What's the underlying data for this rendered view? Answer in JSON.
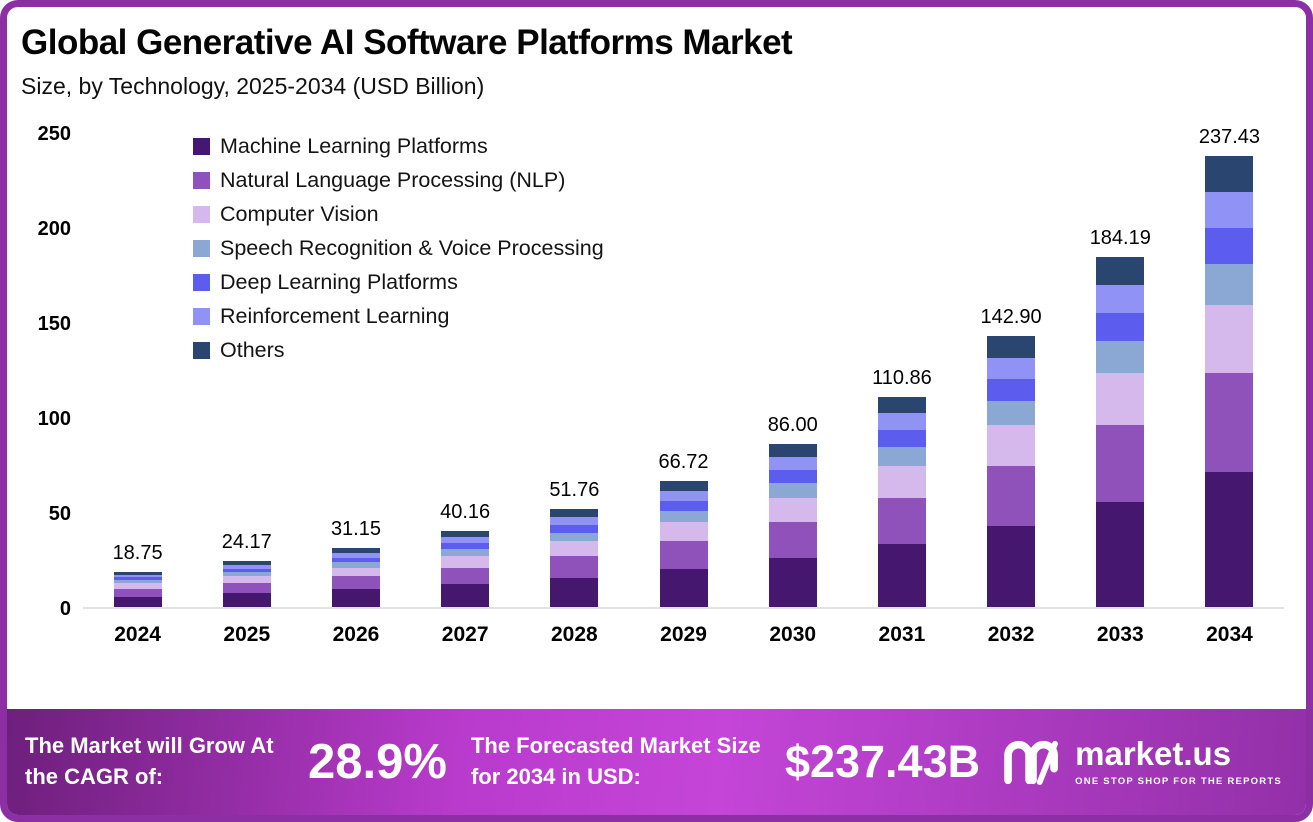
{
  "header": {
    "title": "Global Generative AI Software Platforms Market",
    "subtitle": "Size, by Technology, 2025-2034 (USD Billion)"
  },
  "chart_data": {
    "type": "bar",
    "stacked": true,
    "title": "Global Generative AI Software Platforms Market Size, by Technology, 2025-2034 (USD Billion)",
    "xlabel": "",
    "ylabel": "",
    "ylim": [
      0,
      250
    ],
    "yticks": [
      0,
      50,
      100,
      150,
      200,
      250
    ],
    "grid": false,
    "legend_position": "upper-left-inside",
    "categories": [
      "2024",
      "2025",
      "2026",
      "2027",
      "2028",
      "2029",
      "2030",
      "2031",
      "2032",
      "2033",
      "2034"
    ],
    "totals": [
      "18.75",
      "24.17",
      "31.15",
      "40.16",
      "51.76",
      "66.72",
      "86.00",
      "110.86",
      "142.90",
      "184.19",
      "237.43"
    ],
    "series": [
      {
        "name": "Machine Learning Platforms",
        "color": "#45176f",
        "values": [
          5.63,
          7.25,
          9.35,
          12.05,
          15.53,
          20.02,
          25.8,
          33.26,
          42.87,
          55.26,
          71.23
        ]
      },
      {
        "name": "Natural Language Processing (NLP)",
        "color": "#8e52ba",
        "values": [
          4.13,
          5.32,
          6.85,
          8.84,
          11.39,
          14.68,
          18.92,
          24.39,
          31.44,
          40.52,
          52.23
        ]
      },
      {
        "name": "Computer Vision",
        "color": "#d6b9ec",
        "values": [
          2.81,
          3.63,
          4.67,
          6.02,
          7.76,
          10.01,
          12.9,
          16.63,
          21.44,
          27.63,
          35.61
        ]
      },
      {
        "name": "Speech Recognition & Voice Processing",
        "color": "#8ba7d4",
        "values": [
          1.69,
          2.18,
          2.8,
          3.61,
          4.66,
          6.0,
          7.74,
          9.98,
          12.86,
          16.58,
          21.37
        ]
      },
      {
        "name": "Deep Learning Platforms",
        "color": "#5c5cee",
        "values": [
          1.5,
          1.93,
          2.49,
          3.21,
          4.14,
          5.34,
          6.88,
          8.87,
          11.43,
          14.74,
          18.99
        ]
      },
      {
        "name": "Reinforcement Learning",
        "color": "#9093f5",
        "values": [
          1.5,
          1.93,
          2.49,
          3.21,
          4.14,
          5.34,
          6.88,
          8.87,
          11.43,
          14.74,
          18.99
        ]
      },
      {
        "name": "Others",
        "color": "#2a4570",
        "values": [
          1.5,
          1.93,
          2.49,
          3.21,
          4.14,
          5.34,
          6.88,
          8.87,
          11.43,
          14.74,
          18.99
        ]
      }
    ]
  },
  "banner": {
    "cagr_label": "The Market will Grow At the CAGR of:",
    "cagr_value": "28.9%",
    "forecast_label": "The Forecasted Market Size for 2034 in USD:",
    "forecast_value": "$237.43B",
    "brand_name": "market.us",
    "brand_tagline": "ONE STOP SHOP FOR THE REPORTS"
  },
  "colors": {
    "border": "#8c2fa5",
    "banner_gradient": [
      "#6e1f7c",
      "#b93bcd",
      "#c445d8",
      "#9330a8"
    ]
  }
}
